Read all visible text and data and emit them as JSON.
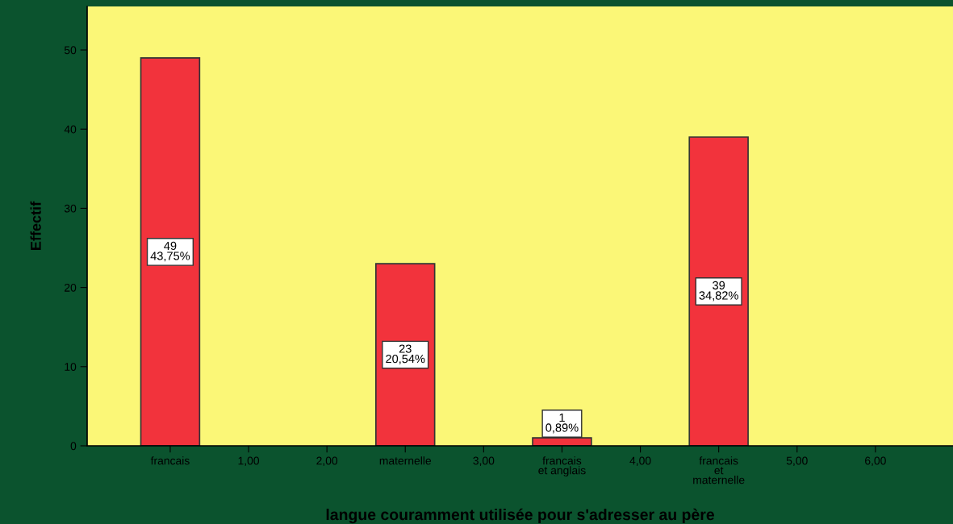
{
  "chart_data": {
    "type": "bar",
    "xlabel": "langue couramment utilisée pour s'adresser au père",
    "ylabel": "Effectif",
    "categories": [
      "francais",
      "1,00",
      "2,00",
      "maternelle",
      "3,00",
      "francais\net anglais",
      "4,00",
      "francais\net\nmaternelle",
      "5,00",
      "6,00"
    ],
    "values": [
      49,
      0,
      0,
      23,
      0,
      1,
      0,
      39,
      0,
      0
    ],
    "value_labels": [
      "49\n43,75%",
      null,
      null,
      "23\n20,54%",
      null,
      "1\n0,89%",
      null,
      "39\n34,82%",
      null,
      null
    ],
    "color": "#f2333c",
    "ylim": [
      0,
      55.5
    ],
    "yticks": [
      0,
      10,
      20,
      30,
      40,
      50
    ],
    "grid": false,
    "legend": false
  }
}
